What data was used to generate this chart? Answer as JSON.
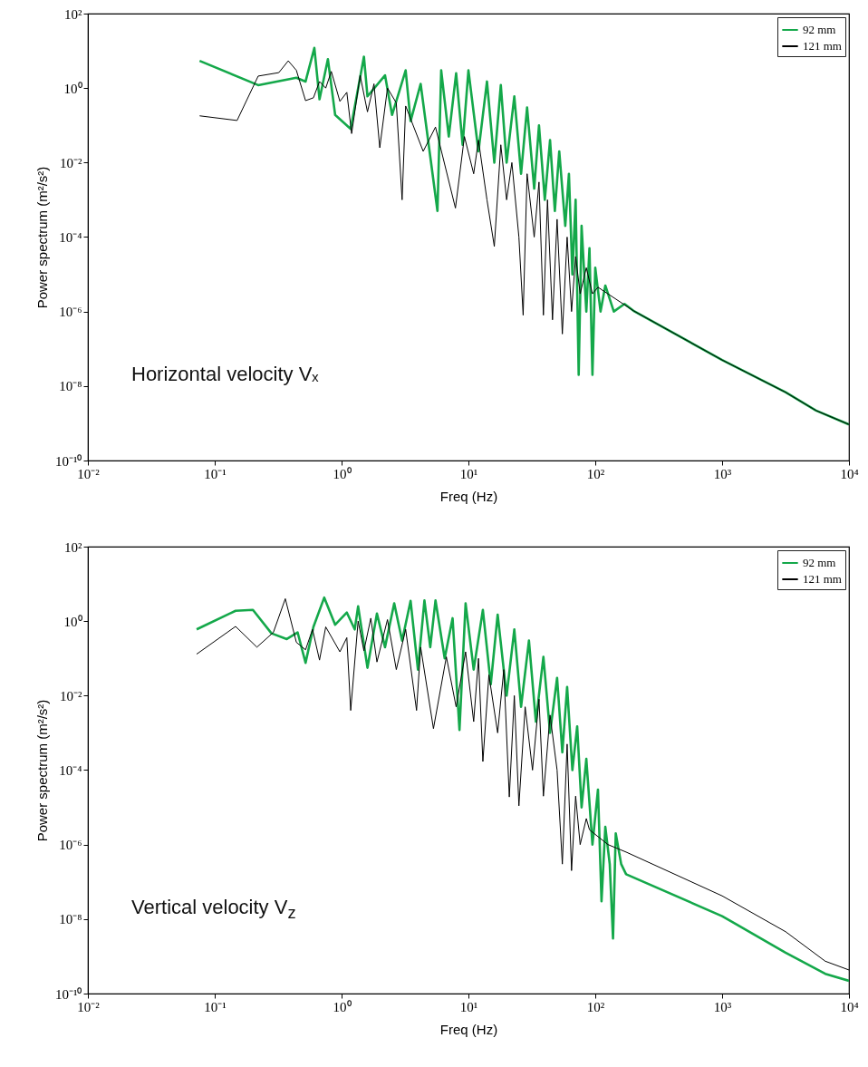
{
  "chart_data": [
    {
      "type": "line",
      "xlabel": "Freq (Hz)",
      "ylabel": "Power spectrum (m²/s²)",
      "log": "xy",
      "grid": false,
      "legend": "top right",
      "line_style": "solid",
      "xlim": [
        0.01,
        10000
      ],
      "ylim": [
        1e-10,
        100
      ],
      "xticks": [
        {
          "value": 0.01,
          "label": "10⁻²"
        },
        {
          "value": 0.1,
          "label": "10⁻¹"
        },
        {
          "value": 1,
          "label": "10⁰"
        },
        {
          "value": 10,
          "label": "10¹"
        },
        {
          "value": 100,
          "label": "10²"
        },
        {
          "value": 1000,
          "label": "10³"
        },
        {
          "value": 10000,
          "label": "10⁴"
        }
      ],
      "yticks": [
        {
          "value": 1e-10,
          "label": "10⁻¹⁰"
        },
        {
          "value": 1e-08,
          "label": "10⁻⁸"
        },
        {
          "value": 1e-06,
          "label": "10⁻⁶"
        },
        {
          "value": 0.0001,
          "label": "10⁻⁴"
        },
        {
          "value": 0.01,
          "label": "10⁻²"
        },
        {
          "value": 1,
          "label": "10⁰"
        },
        {
          "value": 100,
          "label": "10²"
        }
      ],
      "annotations": [
        "Horizontal velocity Vₓ"
      ],
      "series": [
        {
          "name": "92 mm",
          "color": "#14a84a",
          "x": [
            0.076,
            0.22,
            0.44,
            0.52,
            0.61,
            0.67,
            0.78,
            0.89,
            1.18,
            1.5,
            1.6,
            2.2,
            2.5,
            3.2,
            3.5,
            4.2,
            5.7,
            6.1,
            7,
            8,
            9,
            10,
            12,
            14,
            16,
            18,
            20,
            23,
            26,
            29,
            33,
            36,
            40,
            44,
            48,
            52,
            58,
            62,
            66,
            70,
            74,
            78,
            85,
            90,
            95,
            100,
            110,
            120,
            140,
            170,
            200,
            1000,
            3162,
            5500,
            10000
          ],
          "values": [
            5.4,
            1.2,
            1.9,
            1.5,
            12,
            0.5,
            6,
            0.19,
            0.08,
            7,
            0.6,
            2.2,
            0.19,
            3,
            0.13,
            1.3,
            0.0005,
            3,
            0.05,
            2.5,
            0.03,
            3,
            0.02,
            1.5,
            0.01,
            1.2,
            0.01,
            0.6,
            0.005,
            0.3,
            0.002,
            0.1,
            0.001,
            0.04,
            0.0005,
            0.02,
            0.0002,
            0.005,
            1e-05,
            0.001,
            2e-08,
            0.0002,
            1e-06,
            5e-05,
            2e-08,
            1.5e-05,
            1e-06,
            5e-06,
            1e-06,
            1.6e-06,
            1.05e-06,
            5e-08,
            6.8e-09,
            2.2e-09,
            9.3e-10
          ]
        },
        {
          "name": "121 mm",
          "color": "#000000",
          "x": [
            0.076,
            0.15,
            0.22,
            0.32,
            0.38,
            0.44,
            0.52,
            0.6,
            0.67,
            0.75,
            0.83,
            0.97,
            1.1,
            1.2,
            1.4,
            1.6,
            1.8,
            2,
            2.3,
            2.7,
            3,
            3.2,
            4.4,
            5.5,
            7.9,
            9.3,
            11,
            12,
            14,
            16,
            18,
            20,
            22,
            25,
            27,
            29,
            33,
            36,
            39,
            42,
            46,
            50,
            55,
            60,
            65,
            70,
            76,
            85,
            95,
            105,
            200,
            1000,
            3162,
            5500,
            10000
          ],
          "values": [
            0.18,
            0.135,
            2.1,
            2.6,
            5.4,
            3,
            0.46,
            0.55,
            1.5,
            1,
            2.8,
            0.44,
            0.77,
            0.06,
            2.2,
            0.23,
            1.3,
            0.025,
            1,
            0.4,
            0.001,
            0.33,
            0.02,
            0.09,
            0.0006,
            0.05,
            0.005,
            0.04,
            0.001,
            5.6e-05,
            0.03,
            0.001,
            0.01,
            0.0001,
            8e-07,
            0.005,
            0.0001,
            0.003,
            8e-07,
            0.001,
            6e-07,
            0.0003,
            2.5e-07,
            0.0001,
            1e-06,
            3e-05,
            3e-06,
            1.5e-05,
            3e-06,
            4.5e-06,
            1.05e-06,
            5e-08,
            6.8e-09,
            2.2e-09,
            9.3e-10
          ]
        }
      ]
    },
    {
      "type": "line",
      "xlabel": "Freq (Hz)",
      "ylabel": "Power spectrum (m²/s²)",
      "log": "xy",
      "grid": false,
      "legend": "top right",
      "line_style": "solid",
      "xlim": [
        0.01,
        10000
      ],
      "ylim": [
        1e-10,
        100
      ],
      "xticks": [
        {
          "value": 0.01,
          "label": "10⁻²"
        },
        {
          "value": 0.1,
          "label": "10⁻¹"
        },
        {
          "value": 1,
          "label": "10⁰"
        },
        {
          "value": 10,
          "label": "10¹"
        },
        {
          "value": 100,
          "label": "10²"
        },
        {
          "value": 1000,
          "label": "10³"
        },
        {
          "value": 10000,
          "label": "10⁴"
        }
      ],
      "yticks": [
        {
          "value": 1e-10,
          "label": "10⁻¹⁰"
        },
        {
          "value": 1e-08,
          "label": "10⁻⁸"
        },
        {
          "value": 1e-06,
          "label": "10⁻⁶"
        },
        {
          "value": 0.0001,
          "label": "10⁻⁴"
        },
        {
          "value": 0.01,
          "label": "10⁻²"
        },
        {
          "value": 1,
          "label": "10⁰"
        },
        {
          "value": 100,
          "label": "10²"
        }
      ],
      "annotations": [
        "Vertical velocity V$_{z}$"
      ],
      "series": [
        {
          "name": "92 mm",
          "color": "#14a84a",
          "x": [
            0.072,
            0.146,
            0.2,
            0.28,
            0.37,
            0.45,
            0.52,
            0.6,
            0.73,
            0.89,
            1.1,
            1.27,
            1.35,
            1.6,
            1.9,
            2.2,
            2.6,
            3,
            3.5,
            4,
            4.5,
            5,
            5.5,
            6.5,
            7.5,
            8.5,
            9.5,
            11,
            13,
            15,
            17,
            20,
            23,
            26,
            30,
            34,
            39,
            44,
            50,
            55,
            60,
            66,
            72,
            78,
            85,
            95,
            105,
            112,
            120,
            130,
            138,
            145,
            160,
            175,
            1000,
            3162,
            6500,
            10000
          ],
          "values": [
            0.6,
            1.9,
            2,
            0.47,
            0.33,
            0.5,
            0.076,
            0.7,
            4.3,
            0.8,
            1.7,
            0.6,
            2.5,
            0.056,
            1.6,
            0.2,
            3,
            0.3,
            3.5,
            0.05,
            3.6,
            0.2,
            3.6,
            0.1,
            1.2,
            0.0012,
            3,
            0.05,
            2,
            0.02,
            1.5,
            0.01,
            0.6,
            0.005,
            0.3,
            0.002,
            0.11,
            0.001,
            0.03,
            0.0003,
            0.017,
            0.0001,
            0.0015,
            1e-05,
            0.0002,
            1e-06,
            3e-05,
            3e-08,
            3e-06,
            3e-07,
            3e-09,
            2e-06,
            3e-07,
            1.6e-07,
            1.2e-08,
            1.26e-09,
            3.4e-10,
            2.2e-10
          ]
        },
        {
          "name": "121 mm",
          "color": "#000000",
          "x": [
            0.072,
            0.146,
            0.215,
            0.29,
            0.36,
            0.44,
            0.52,
            0.59,
            0.67,
            0.75,
            0.97,
            1.1,
            1.18,
            1.35,
            1.5,
            1.7,
            1.9,
            2.3,
            2.7,
            3.2,
            3.9,
            4.2,
            5.3,
            6.7,
            8,
            9.5,
            11,
            12,
            13,
            14.5,
            17,
            19,
            21,
            23,
            25,
            28,
            32,
            36,
            39,
            44,
            50,
            55,
            60,
            65,
            70,
            76,
            85,
            90,
            126,
            175,
            1000,
            3162,
            6500,
            10000
          ],
          "values": [
            0.13,
            0.72,
            0.2,
            0.5,
            4,
            0.27,
            0.17,
            0.6,
            0.09,
            0.7,
            0.15,
            0.36,
            0.004,
            1,
            0.16,
            1.2,
            0.08,
            1.1,
            0.05,
            0.6,
            0.004,
            0.2,
            0.0013,
            0.11,
            0.005,
            0.15,
            0.002,
            0.1,
            0.00017,
            0.036,
            0.001,
            0.05,
            1.9e-05,
            0.01,
            1.1e-05,
            0.005,
            0.0001,
            0.008,
            2e-05,
            0.003,
            0.0001,
            3e-07,
            0.0005,
            2e-07,
            2e-05,
            1e-06,
            5e-06,
            2.5e-06,
            1e-06,
            6.3e-07,
            4.2e-08,
            4.6e-09,
            7.4e-10,
            4.3e-10
          ]
        }
      ]
    }
  ]
}
